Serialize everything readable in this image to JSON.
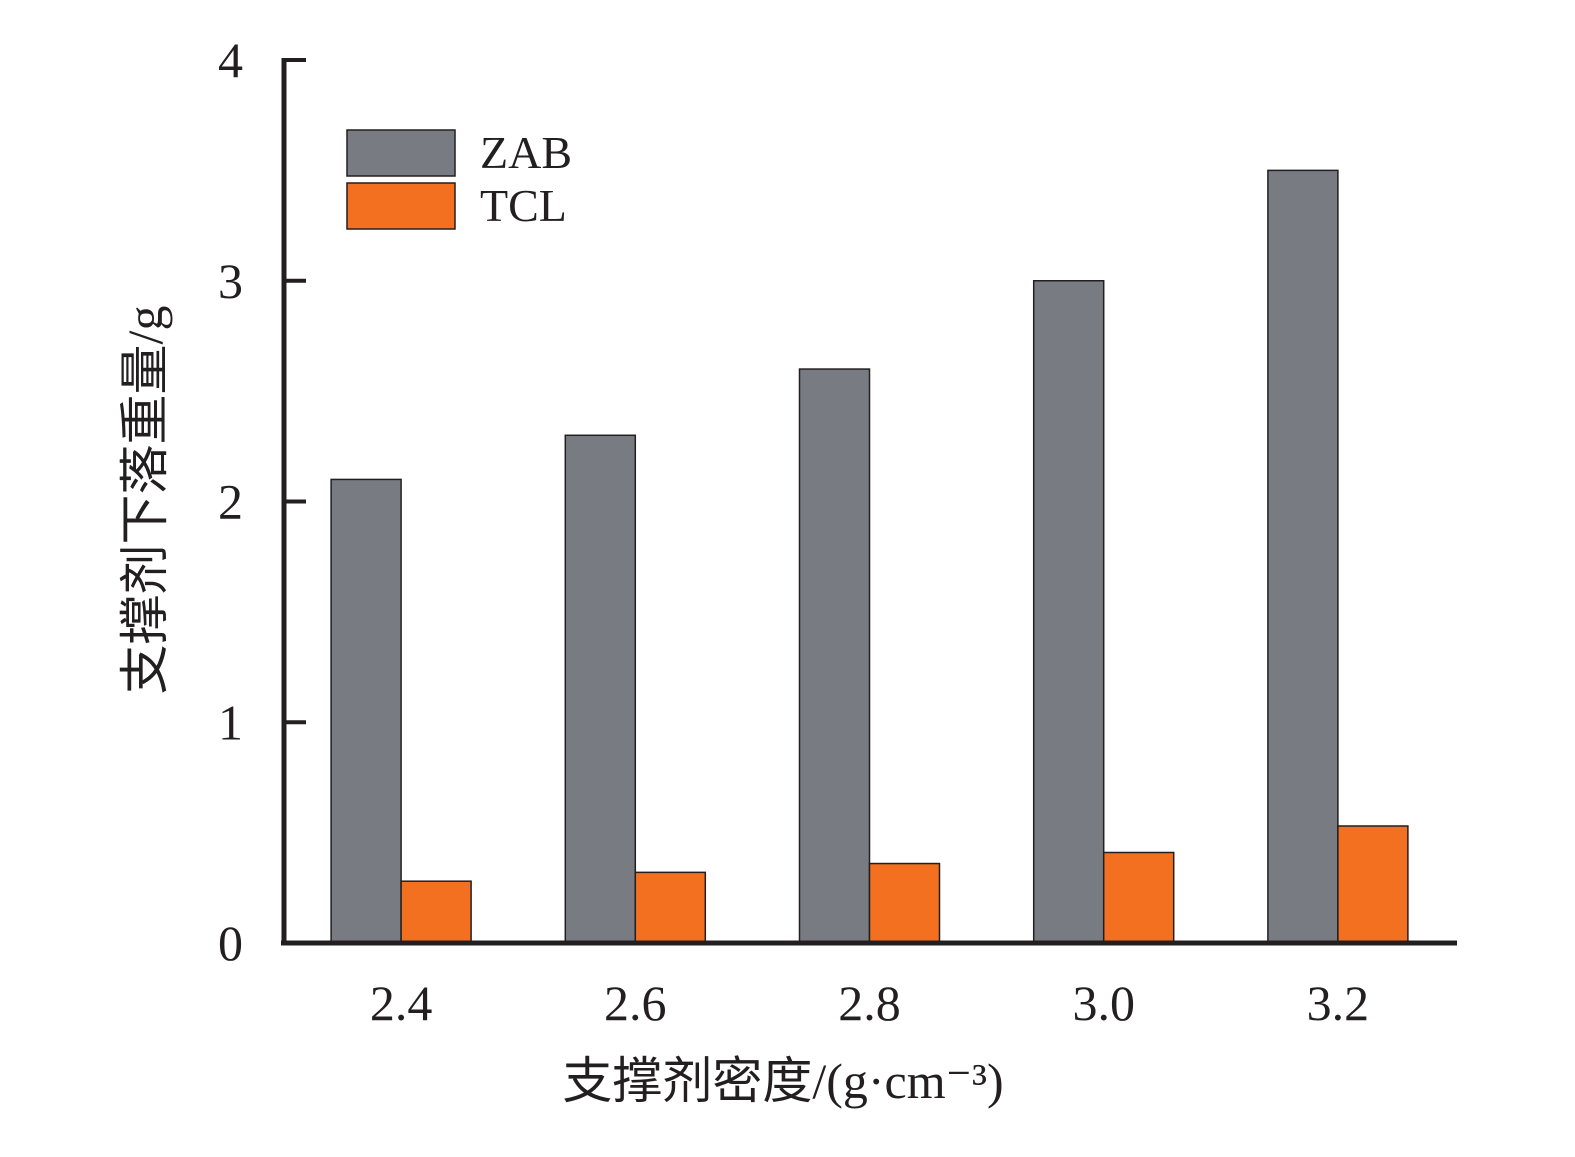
{
  "chart_data": {
    "type": "bar",
    "xlabel": "支撑剂密度/(g·cm⁻³)",
    "ylabel": "支撑剂下落重量/g",
    "ylim": [
      0,
      4
    ],
    "yticks": [
      "0",
      "1",
      "2",
      "3",
      "4"
    ],
    "categories": [
      "2.4",
      "2.6",
      "2.8",
      "3.0",
      "3.2"
    ],
    "series": [
      {
        "name": "ZAB",
        "color": "#797b82",
        "values": [
          2.1,
          2.3,
          2.6,
          3.0,
          3.5
        ]
      },
      {
        "name": "TCL",
        "color": "#f37021",
        "values": [
          0.28,
          0.32,
          0.36,
          0.41,
          0.53
        ]
      }
    ],
    "legend_position": "top-left",
    "grid": false
  }
}
